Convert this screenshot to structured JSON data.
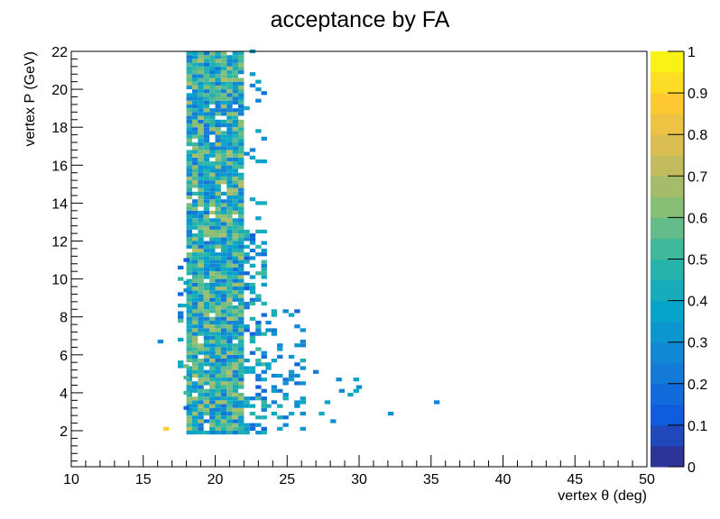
{
  "chart_data": {
    "type": "heatmap",
    "title": "acceptance by FA",
    "xlabel": "vertex θ (deg)",
    "ylabel": "vertex P (GeV)",
    "xlim": [
      10,
      50
    ],
    "ylim": [
      0.1,
      22
    ],
    "zlim": [
      0,
      1
    ],
    "x_ticks": [
      "10",
      "15",
      "20",
      "25",
      "30",
      "35",
      "40",
      "45",
      "50"
    ],
    "y_ticks": [
      "2",
      "4",
      "6",
      "8",
      "10",
      "12",
      "14",
      "16",
      "18",
      "20",
      "22"
    ],
    "z_ticks": [
      "0",
      "0.1",
      "0.2",
      "0.3",
      "0.4",
      "0.5",
      "0.6",
      "0.7",
      "0.8",
      "0.9",
      "1"
    ],
    "bin_width_x": 0.4,
    "bin_width_y": 0.2,
    "grid": false,
    "palette": [
      "#352a87",
      "#0f5cdd",
      "#1481d6",
      "#06a4ca",
      "#2eb7a4",
      "#87bf77",
      "#d1bb59",
      "#fec832",
      "#f9fb0e"
    ],
    "bands": [
      {
        "x_from": 18.0,
        "x_to": 22.0,
        "y_from": 1.8,
        "y_to": 22.0,
        "fill": 0.95,
        "mean": 0.45,
        "spread": 0.25
      },
      {
        "x_from": 17.4,
        "x_to": 18.0,
        "y_from": 2.5,
        "y_to": 12.0,
        "fill": 0.15,
        "mean": 0.35,
        "spread": 0.25
      },
      {
        "x_from": 22.0,
        "x_to": 23.5,
        "y_from": 1.8,
        "y_to": 12.5,
        "fill": 0.45,
        "mean": 0.33,
        "spread": 0.2
      },
      {
        "x_from": 22.0,
        "x_to": 23.5,
        "y_from": 12.5,
        "y_to": 22.0,
        "fill": 0.12,
        "mean": 0.3,
        "spread": 0.15
      },
      {
        "x_from": 23.5,
        "x_to": 26.0,
        "y_from": 2.0,
        "y_to": 8.5,
        "fill": 0.22,
        "mean": 0.3,
        "spread": 0.15
      },
      {
        "x_from": 26.0,
        "x_to": 30.0,
        "y_from": 2.4,
        "y_to": 5.2,
        "fill": 0.07,
        "mean": 0.3,
        "spread": 0.12
      }
    ],
    "outliers": [
      {
        "x": 16.0,
        "y": 6.6,
        "value": 0.28
      },
      {
        "x": 32.0,
        "y": 2.8,
        "value": 0.3
      },
      {
        "x": 35.2,
        "y": 3.4,
        "value": 0.25
      },
      {
        "x": 16.4,
        "y": 2.0,
        "value": 0.9
      },
      {
        "x": 28.6,
        "y": 4.0,
        "value": 0.28
      },
      {
        "x": 29.8,
        "y": 4.2,
        "value": 0.3
      }
    ]
  }
}
